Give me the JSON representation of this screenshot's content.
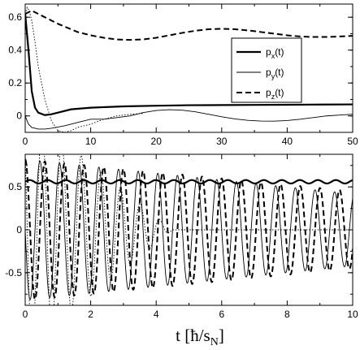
{
  "chart_data": [
    {
      "type": "line",
      "title": "",
      "xlabel": "",
      "ylabel": "",
      "xlim": [
        0,
        50
      ],
      "ylim": [
        -0.1,
        0.68
      ],
      "xticks": [
        0,
        10,
        20,
        30,
        40,
        50
      ],
      "yticks": [
        0,
        0.2,
        0.4,
        0.6
      ],
      "xtick_labels": [
        "0",
        "10",
        "20",
        "30",
        "40",
        "50"
      ],
      "ytick_labels": [
        "0",
        "0.2",
        "0.4",
        "0.6"
      ],
      "grid": false,
      "legend": {
        "placement": "right-middle",
        "entries": [
          {
            "label": "px(t)",
            "base": "p",
            "sub": "x",
            "suffix": "(t)",
            "style": "solid-thick"
          },
          {
            "label": "py(t)",
            "base": "p",
            "sub": "y",
            "suffix": "(t)",
            "style": "solid-thin"
          },
          {
            "label": "pz(t)",
            "base": "p",
            "sub": "z",
            "suffix": "(t)",
            "style": "dashed"
          }
        ]
      },
      "series": [
        {
          "name": "px(t)",
          "style": "solid-thick",
          "x": [
            0,
            0.5,
            1,
            1.5,
            2,
            3,
            4,
            5,
            7,
            10,
            15,
            20,
            25,
            30,
            35,
            40,
            45,
            50
          ],
          "y": [
            0.62,
            0.4,
            0.15,
            0.05,
            0.02,
            0.005,
            0.01,
            0.02,
            0.04,
            0.05,
            0.058,
            0.062,
            0.065,
            0.066,
            0.067,
            0.068,
            0.069,
            0.07
          ]
        },
        {
          "name": "py(t)",
          "style": "solid-thin",
          "x": [
            0,
            0.5,
            1,
            2,
            3,
            4,
            6,
            8,
            10,
            12,
            14,
            16,
            18,
            20,
            22,
            24,
            26,
            28,
            30,
            32,
            34,
            36,
            38,
            40,
            42,
            44,
            46,
            48,
            50
          ],
          "y": [
            0.0,
            -0.05,
            -0.07,
            -0.08,
            -0.08,
            -0.075,
            -0.06,
            -0.04,
            -0.02,
            -0.02,
            -0.01,
            0.0,
            0.02,
            0.033,
            0.038,
            0.035,
            0.025,
            0.01,
            -0.005,
            -0.018,
            -0.027,
            -0.031,
            -0.032,
            -0.028,
            -0.02,
            -0.01,
            0.0,
            0.005,
            0.01
          ]
        },
        {
          "name": "pz(t)",
          "style": "dashed",
          "x": [
            0,
            1,
            2,
            3,
            5,
            8,
            10,
            12,
            14,
            16,
            18,
            20,
            22,
            24,
            26,
            28,
            30,
            32,
            34,
            36,
            38,
            40,
            42,
            44,
            46,
            48,
            50
          ],
          "y": [
            0.62,
            0.64,
            0.62,
            0.6,
            0.56,
            0.51,
            0.49,
            0.475,
            0.465,
            0.462,
            0.465,
            0.475,
            0.49,
            0.505,
            0.518,
            0.527,
            0.53,
            0.527,
            0.52,
            0.51,
            0.5,
            0.49,
            0.483,
            0.48,
            0.48,
            0.483,
            0.487
          ]
        },
        {
          "name": "",
          "style": "dotted",
          "x": [
            0,
            0.3,
            0.6,
            1,
            1.5,
            2,
            3,
            4,
            5,
            6,
            7,
            8,
            10,
            12,
            14,
            16,
            18
          ],
          "y": [
            0.62,
            0.66,
            0.64,
            0.58,
            0.45,
            0.3,
            0.1,
            -0.03,
            -0.09,
            -0.1,
            -0.09,
            -0.07,
            -0.05,
            -0.02,
            0.0,
            0.01,
            0.015
          ]
        }
      ]
    },
    {
      "type": "line",
      "title": "",
      "xlabel": "t [ħ/s_N]",
      "ylabel": "",
      "xlim": [
        0,
        10
      ],
      "ylim": [
        -0.88,
        0.88
      ],
      "xticks": [
        0,
        2,
        4,
        6,
        8,
        10
      ],
      "yticks": [
        -0.5,
        0,
        0.5
      ],
      "xtick_labels": [
        "0",
        "2",
        "4",
        "6",
        "8",
        "10"
      ],
      "ytick_labels": [
        "-0.5",
        "0",
        "0.5"
      ],
      "grid": false,
      "series": [
        {
          "name": "px(t)",
          "style": "solid-thick",
          "model": "nearly-constant",
          "mean": 0.56,
          "amplitude": 0.02,
          "period": 0.55
        },
        {
          "name": "py(t)",
          "style": "solid-thin",
          "model": "damped-oscillation",
          "period": 0.6,
          "amp_start": 0.82,
          "amp_end": 0.42,
          "phase": 1.57
        },
        {
          "name": "pz(t)",
          "style": "dashed",
          "model": "damped-oscillation",
          "period": 0.6,
          "amp_start": 0.82,
          "amp_end": 0.45,
          "phase": 0
        },
        {
          "name": "",
          "style": "dotted",
          "model": "damped-oscillation",
          "period": 0.6,
          "amp_start": 1.4,
          "amp_end": 0.0,
          "fade_end": 4.5,
          "phase": 0.9
        }
      ]
    }
  ]
}
